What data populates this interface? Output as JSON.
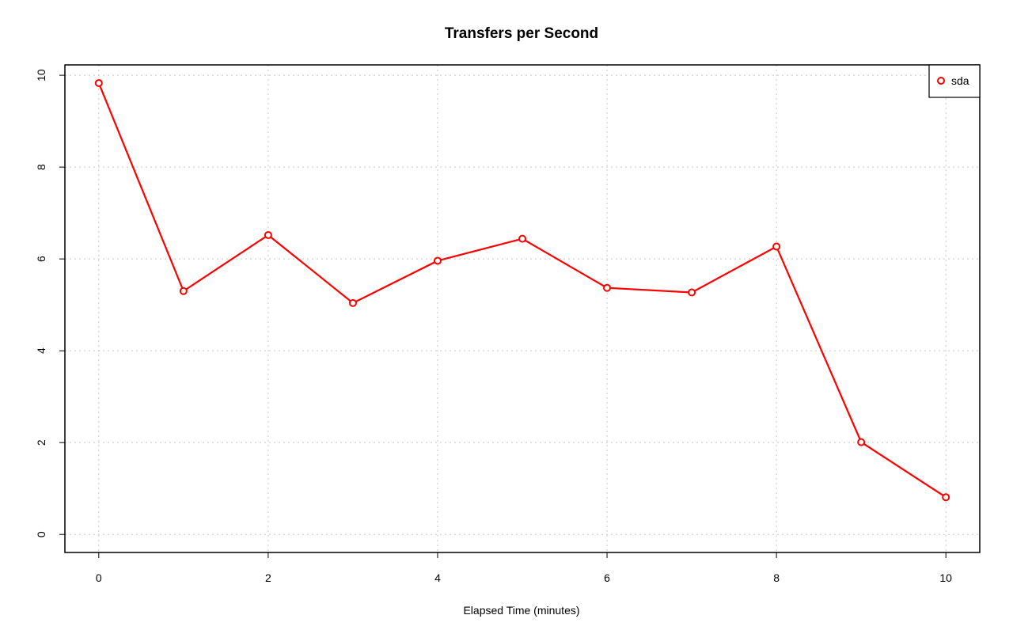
{
  "chart_data": {
    "type": "line",
    "title": "Transfers per Second",
    "xlabel": "Elapsed Time (minutes)",
    "x": [
      0,
      1,
      2,
      3,
      4,
      5,
      6,
      7,
      8,
      9,
      10
    ],
    "series": [
      {
        "name": "sda",
        "color": "#ff0000",
        "values": [
          9.83,
          5.3,
          6.52,
          5.04,
          5.96,
          6.44,
          5.37,
          5.27,
          6.27,
          2.01,
          0.81
        ]
      }
    ],
    "xlim": [
      -0.4,
      10.4
    ],
    "ylim": [
      -0.393,
      10.226
    ],
    "xticks": [
      0,
      2,
      4,
      6,
      8,
      10
    ],
    "yticks": [
      0,
      2,
      4,
      6,
      8,
      10
    ],
    "grid": true,
    "legend": "topright"
  }
}
